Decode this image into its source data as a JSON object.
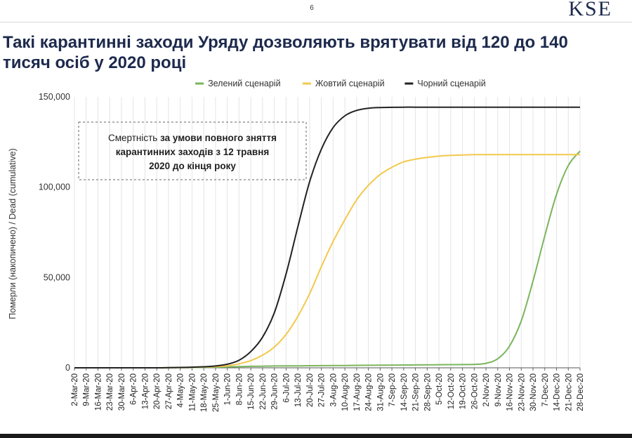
{
  "slide": {
    "page_number": "6",
    "logo": "KSE",
    "title_line1": "Такі карантинні заходи Уряду дозволяють врятувати від 120 до 140",
    "title_line2": "тисяч осіб у 2020 році"
  },
  "chart_data": {
    "type": "line",
    "title": "",
    "xlabel": "",
    "ylabel": "Померли (накопичено) / Dead (cumulative)",
    "ylim": [
      0,
      150000
    ],
    "y_ticks": [
      {
        "value": 0,
        "label": "0"
      },
      {
        "value": 50000,
        "label": "50,000"
      },
      {
        "value": 100000,
        "label": "100,000"
      },
      {
        "value": 150000,
        "label": "150,000"
      }
    ],
    "grid": "vertical",
    "legend_position": "top",
    "categories": [
      "2-Mar-20",
      "9-Mar-20",
      "16-Mar-20",
      "23-Mar-20",
      "30-Mar-20",
      "6-Apr-20",
      "13-Apr-20",
      "20-Apr-20",
      "27-Apr-20",
      "4-May-20",
      "11-May-20",
      "18-May-20",
      "25-May-20",
      "1-Jun-20",
      "8-Jun-20",
      "15-Jun-20",
      "22-Jun-20",
      "29-Jun-20",
      "6-Jul-20",
      "13-Jul-20",
      "20-Jul-20",
      "27-Jul-20",
      "3-Aug-20",
      "10-Aug-20",
      "17-Aug-20",
      "24-Aug-20",
      "31-Aug-20",
      "7-Sep-20",
      "14-Sep-20",
      "21-Sep-20",
      "28-Sep-20",
      "5-Oct-20",
      "12-Oct-20",
      "19-Oct-20",
      "26-Oct-20",
      "2-Nov-20",
      "9-Nov-20",
      "16-Nov-20",
      "23-Nov-20",
      "30-Nov-20",
      "7-Dec-20",
      "14-Dec-20",
      "21-Dec-20",
      "28-Dec-20"
    ],
    "series": [
      {
        "name": "Зелений сценарій",
        "color": "#7ab55c",
        "values": [
          0,
          0,
          0,
          0,
          0,
          0,
          0,
          0,
          50,
          100,
          150,
          250,
          350,
          500,
          650,
          800,
          900,
          1000,
          1050,
          1100,
          1150,
          1200,
          1250,
          1300,
          1350,
          1400,
          1450,
          1500,
          1550,
          1600,
          1650,
          1700,
          1750,
          1800,
          1900,
          2500,
          5000,
          12000,
          26000,
          48000,
          73000,
          96000,
          112000,
          120000
        ]
      },
      {
        "name": "Жовтий сценарій",
        "color": "#f2c94c",
        "values": [
          0,
          0,
          0,
          0,
          0,
          0,
          0,
          0,
          100,
          200,
          300,
          450,
          700,
          1100,
          2200,
          4000,
          7000,
          11500,
          18500,
          28500,
          41000,
          56000,
          70000,
          82000,
          93000,
          101000,
          107000,
          111000,
          114000,
          115500,
          116500,
          117200,
          117600,
          117800,
          118000,
          118000,
          118000,
          118000,
          118000,
          118000,
          118000,
          118000,
          118000,
          118000
        ]
      },
      {
        "name": "Чорний сценарій",
        "color": "#222222",
        "values": [
          0,
          0,
          0,
          0,
          0,
          0,
          0,
          0,
          100,
          200,
          350,
          600,
          1000,
          2000,
          4200,
          9000,
          17000,
          30500,
          52000,
          78000,
          103000,
          121000,
          133000,
          139500,
          142500,
          143700,
          144100,
          144200,
          144300,
          144300,
          144300,
          144300,
          144300,
          144300,
          144300,
          144300,
          144300,
          144300,
          144300,
          144300,
          144300,
          144300,
          144300,
          144300
        ]
      }
    ],
    "annotation": {
      "prefix": "Смертність ",
      "bold_line1": "за умови повного зняття",
      "line2": "карантинних заходів з 12 травня",
      "line3": "2020 до кінця року"
    }
  }
}
